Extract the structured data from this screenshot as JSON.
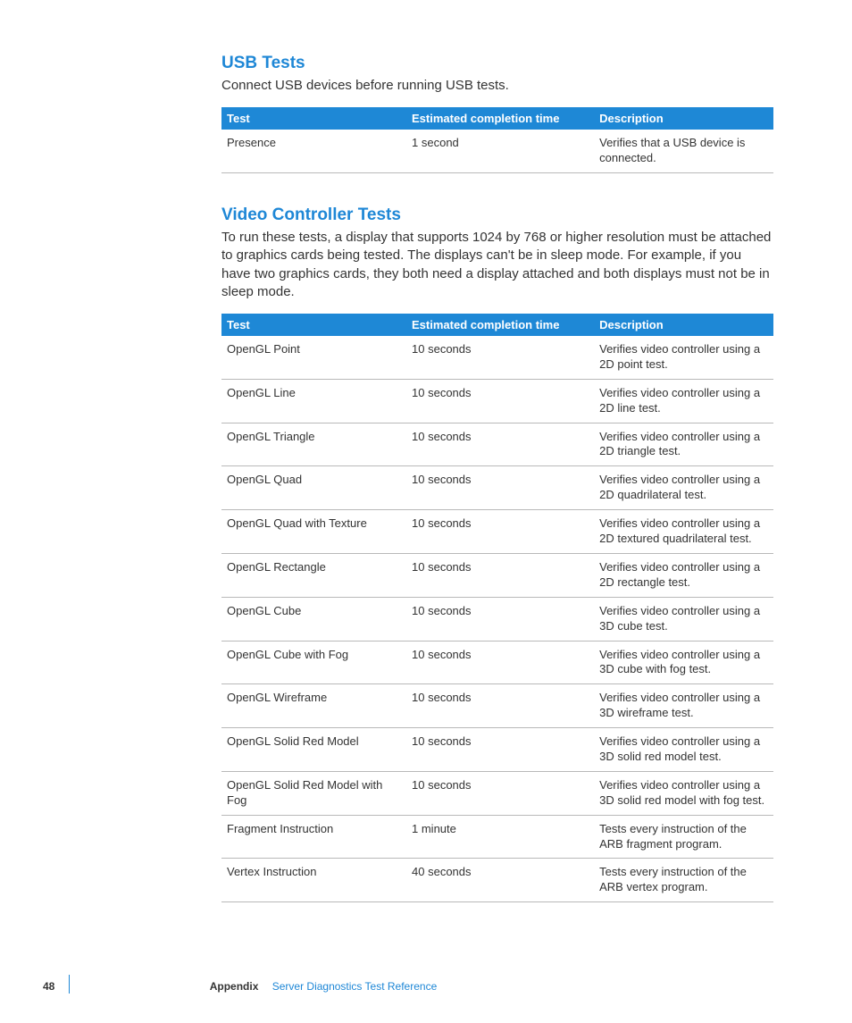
{
  "colors": {
    "accent": "#1e87d6",
    "header_bg": "#1e88d6",
    "header_text": "#ffffff",
    "body_text": "#333333",
    "row_border": "#b9b9b9",
    "page_bg": "#ffffff"
  },
  "typography": {
    "heading_fontsize": 19,
    "heading_weight": 600,
    "body_fontsize": 15,
    "table_fontsize": 13,
    "footer_fontsize": 12
  },
  "sections": [
    {
      "heading": "USB Tests",
      "intro": "Connect USB devices before running USB tests.",
      "table": {
        "columns": [
          "Test",
          "Estimated completion time",
          "Description"
        ],
        "rows": [
          [
            "Presence",
            "1 second",
            "Verifies that a USB device is connected."
          ]
        ]
      }
    },
    {
      "heading": "Video Controller Tests",
      "intro": "To run these tests, a display that supports 1024 by 768 or higher resolution must be attached to graphics cards being tested. The displays can't be in sleep mode. For example, if you have two graphics cards, they both need a display attached and both displays must not be in sleep mode.",
      "table": {
        "columns": [
          "Test",
          "Estimated completion time",
          "Description"
        ],
        "rows": [
          [
            "OpenGL Point",
            "10 seconds",
            "Verifies video controller using a 2D point test."
          ],
          [
            "OpenGL Line",
            "10 seconds",
            "Verifies video controller using a 2D line test."
          ],
          [
            "OpenGL Triangle",
            "10 seconds",
            "Verifies video controller using a 2D triangle test."
          ],
          [
            "OpenGL Quad",
            "10 seconds",
            "Verifies video controller using a 2D quadrilateral test."
          ],
          [
            "OpenGL Quad with Texture",
            "10 seconds",
            "Verifies video controller using a 2D textured quadrilateral test."
          ],
          [
            "OpenGL Rectangle",
            "10 seconds",
            "Verifies video controller using a 2D rectangle test."
          ],
          [
            "OpenGL Cube",
            "10 seconds",
            "Verifies video controller using a 3D cube test."
          ],
          [
            "OpenGL Cube with Fog",
            "10 seconds",
            "Verifies video controller using a 3D cube with fog test."
          ],
          [
            "OpenGL Wireframe",
            "10 seconds",
            "Verifies video controller using a 3D wireframe test."
          ],
          [
            "OpenGL Solid Red Model",
            "10 seconds",
            "Verifies video controller using a 3D solid red model test."
          ],
          [
            "OpenGL Solid Red Model with Fog",
            "10 seconds",
            "Verifies video controller using a 3D solid red model with fog test."
          ],
          [
            "Fragment Instruction",
            "1 minute",
            "Tests every instruction of the ARB fragment program."
          ],
          [
            "Vertex Instruction",
            "40 seconds",
            "Tests every instruction of the ARB vertex program."
          ]
        ]
      }
    }
  ],
  "footer": {
    "page_number": "48",
    "appendix_label": "Appendix",
    "reference": "Server Diagnostics Test Reference"
  }
}
